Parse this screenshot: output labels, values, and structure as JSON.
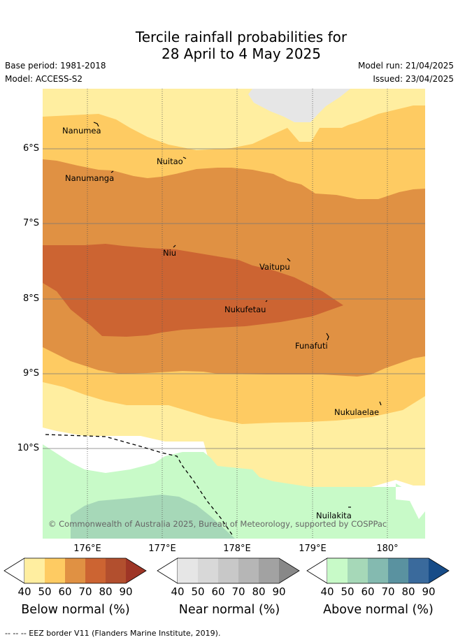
{
  "title_line1": "Tercile rainfall probabilities for",
  "title_line2": "28 April to 4 May 2025",
  "base_period": "Base period: 1981-2018",
  "model": "Model: ACCESS-S2",
  "model_run": "Model run: 21/04/2025",
  "issued": "Issued: 23/04/2025",
  "lat_labels": [
    "6°S",
    "7°S",
    "8°S",
    "9°S",
    "10°S"
  ],
  "lon_labels": [
    "176°E",
    "177°E",
    "178°E",
    "179°E",
    "180°"
  ],
  "places": [
    "Nanumea",
    "Nuitao",
    "Nanumanga",
    "Niu",
    "Vaitupu",
    "Nukufetau",
    "Funafuti",
    "Nukulaelae",
    "Nuilakita"
  ],
  "copyright": "© Commonwealth of Australia 2025, Bureau of Meteorology, supported by COSPPac",
  "colorbars": [
    {
      "title": "Below normal (%)",
      "ticks": [
        "40",
        "50",
        "60",
        "70",
        "80",
        "90"
      ],
      "colors": [
        "#ffeea0",
        "#fecb62",
        "#e09143",
        "#cc6432",
        "#b24f2e",
        "#9e3526"
      ]
    },
    {
      "title": "Near normal (%)",
      "ticks": [
        "40",
        "50",
        "60",
        "70",
        "80",
        "90"
      ],
      "colors": [
        "#e6e6e6",
        "#d8d8d8",
        "#c8c8c8",
        "#b6b6b6",
        "#a2a2a2",
        "#888888"
      ]
    },
    {
      "title": "Above normal (%)",
      "ticks": [
        "40",
        "50",
        "60",
        "70",
        "80",
        "90"
      ],
      "colors": [
        "#c8fac8",
        "#a6d8b8",
        "#84bab0",
        "#5a92a0",
        "#3a6a9c",
        "#174c88"
      ]
    }
  ],
  "footnote": "--  --  -- EEZ border V11 (Flanders Marine Institute, 2019)."
}
